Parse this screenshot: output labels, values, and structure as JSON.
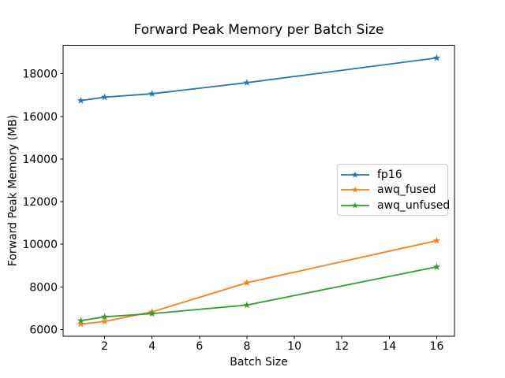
{
  "chart_data": {
    "type": "line",
    "title": "Forward Peak Memory per Batch Size",
    "xlabel": "Batch Size",
    "ylabel": "Forward Peak Memory (MB)",
    "x": [
      1,
      2,
      4,
      8,
      16
    ],
    "series": [
      {
        "name": "fp16",
        "color": "#1f77b4",
        "marker": "star",
        "values": [
          16740,
          16900,
          17060,
          17580,
          18740
        ]
      },
      {
        "name": "awq_fused",
        "color": "#ff7f0e",
        "marker": "star",
        "values": [
          6260,
          6380,
          6830,
          8200,
          10170
        ]
      },
      {
        "name": "awq_unfused",
        "color": "#2ca02c",
        "marker": "star",
        "values": [
          6420,
          6600,
          6750,
          7150,
          8940
        ]
      }
    ],
    "xlim": [
      0.25,
      16.75
    ],
    "ylim": [
      5680,
      19330
    ],
    "x_ticks": [
      2,
      4,
      6,
      8,
      10,
      12,
      14,
      16
    ],
    "y_ticks": [
      6000,
      8000,
      10000,
      12000,
      14000,
      16000,
      18000
    ],
    "grid": false,
    "legend_position": "center-right",
    "legend_labels": [
      "fp16",
      "awq_fused",
      "awq_unfused"
    ]
  },
  "colors": {
    "background": "#ffffff",
    "text": "#000000",
    "spine": "#000000",
    "legend_border": "#cccccc"
  }
}
